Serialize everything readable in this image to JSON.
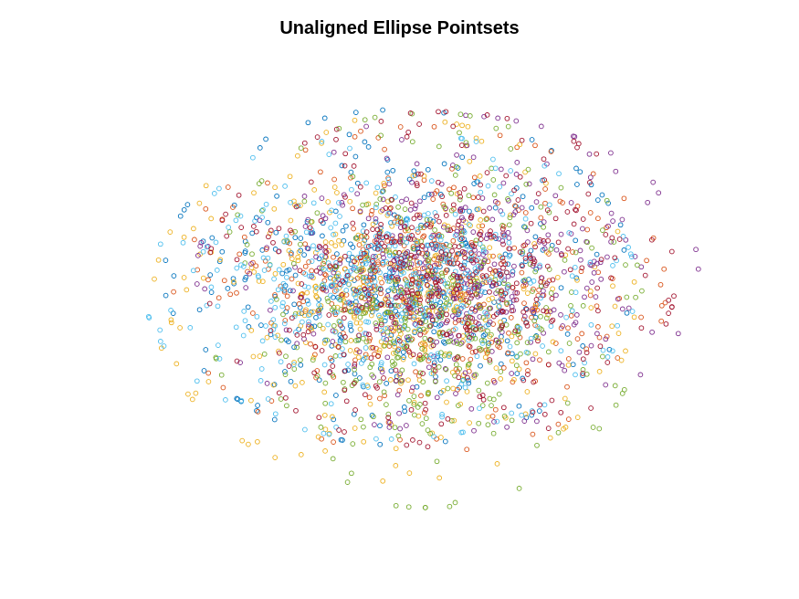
{
  "figure": {
    "background": "#ffffff"
  },
  "chart_data": {
    "type": "scatter",
    "title": "Unaligned Ellipse Pointsets",
    "xlabel": "",
    "ylabel": "",
    "axes_visible": false,
    "grid": false,
    "legend": "none",
    "marker": "open-circle",
    "xlim": [
      -1.45,
      1.45
    ],
    "ylim": [
      -1.15,
      1.15
    ],
    "points_per_set": 420,
    "series": [
      {
        "color": "#0072BD",
        "center": [
          -0.08,
          0.06
        ],
        "radii": [
          0.95,
          0.72
        ]
      },
      {
        "color": "#D95319",
        "center": [
          0.02,
          0.0
        ],
        "radii": [
          1.0,
          0.7
        ]
      },
      {
        "color": "#EDB120",
        "center": [
          -0.1,
          -0.05
        ],
        "radii": [
          0.98,
          0.78
        ]
      },
      {
        "color": "#7E2F8E",
        "center": [
          0.15,
          0.08
        ],
        "radii": [
          1.02,
          0.68
        ]
      },
      {
        "color": "#77AC30",
        "center": [
          0.05,
          -0.1
        ],
        "radii": [
          0.88,
          0.85
        ]
      },
      {
        "color": "#4DBEEE",
        "center": [
          -0.12,
          0.02
        ],
        "radii": [
          1.0,
          0.66
        ]
      },
      {
        "color": "#A2142F",
        "center": [
          0.12,
          0.05
        ],
        "radii": [
          0.95,
          0.72
        ]
      }
    ]
  }
}
